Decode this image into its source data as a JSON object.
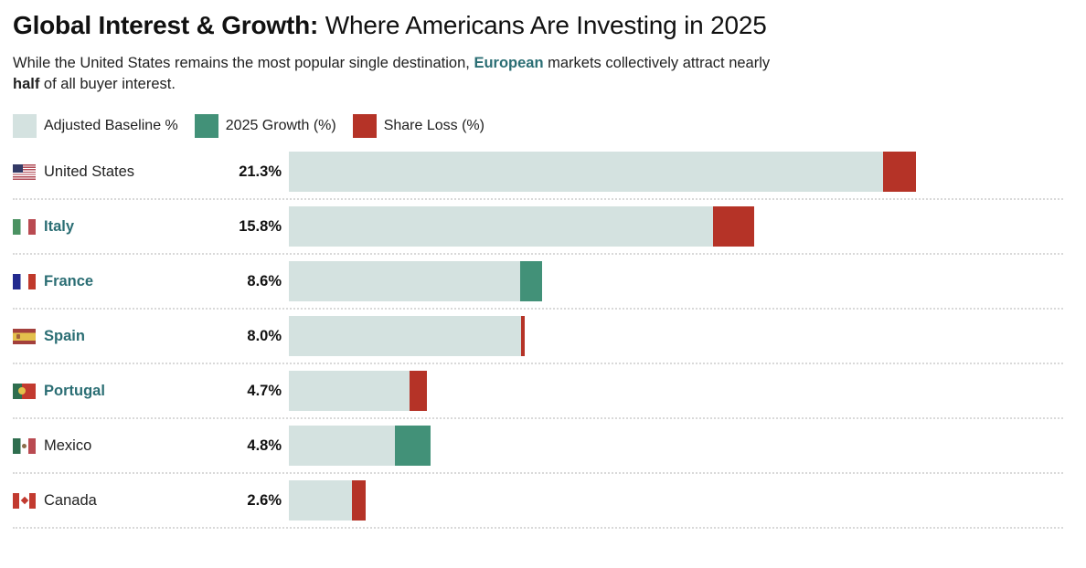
{
  "header": {
    "title_bold": "Global Interest & Growth:",
    "title_rest": " Where Americans Are Investing in 2025",
    "subtitle_prefix": "While the United States remains the most popular single destination, ",
    "subtitle_highlight": "European",
    "subtitle_mid": " markets collectively attract nearly",
    "subtitle_bold": "half",
    "subtitle_suffix": " of all buyer interest."
  },
  "legend": [
    {
      "label": "Adjusted Baseline %",
      "color": "#d4e2e0"
    },
    {
      "label": "2025 Growth (%)",
      "color": "#429178"
    },
    {
      "label": "Share Loss (%)",
      "color": "#b53327"
    }
  ],
  "colors": {
    "baseline": "#d4e2e0",
    "growth": "#429178",
    "loss": "#b53327",
    "european_text": "#2b6e74"
  },
  "chart_data": {
    "type": "bar",
    "orientation": "horizontal",
    "unit": "%",
    "title": "Global Interest & Growth: Where Americans Are Investing in 2025",
    "legend_entries": [
      "Adjusted Baseline %",
      "2025 Growth (%)",
      "Share Loss (%)"
    ],
    "xlim": [
      0,
      26
    ],
    "grid": false,
    "rows": [
      {
        "country": "United States",
        "flag": "united-states",
        "value_label": "21.3%",
        "total": 21.3,
        "baseline": 20.2,
        "segment_type": "loss",
        "segment_value": 1.1,
        "european": false
      },
      {
        "country": "Italy",
        "flag": "italy",
        "value_label": "15.8%",
        "total": 15.8,
        "baseline": 14.4,
        "segment_type": "loss",
        "segment_value": 1.4,
        "european": true
      },
      {
        "country": "France",
        "flag": "france",
        "value_label": "8.6%",
        "total": 8.6,
        "baseline": 7.85,
        "segment_type": "growth",
        "segment_value": 0.75,
        "european": true
      },
      {
        "country": "Spain",
        "flag": "spain",
        "value_label": "8.0%",
        "total": 8.0,
        "baseline": 7.88,
        "segment_type": "loss",
        "segment_value": 0.12,
        "european": true
      },
      {
        "country": "Portugal",
        "flag": "portugal",
        "value_label": "4.7%",
        "total": 4.7,
        "baseline": 4.1,
        "segment_type": "loss",
        "segment_value": 0.6,
        "european": true
      },
      {
        "country": "Mexico",
        "flag": "mexico",
        "value_label": "4.8%",
        "total": 4.8,
        "baseline": 3.6,
        "segment_type": "growth",
        "segment_value": 1.2,
        "european": false
      },
      {
        "country": "Canada",
        "flag": "canada",
        "value_label": "2.6%",
        "total": 2.6,
        "baseline": 2.15,
        "segment_type": "loss",
        "segment_value": 0.45,
        "european": false
      }
    ]
  }
}
